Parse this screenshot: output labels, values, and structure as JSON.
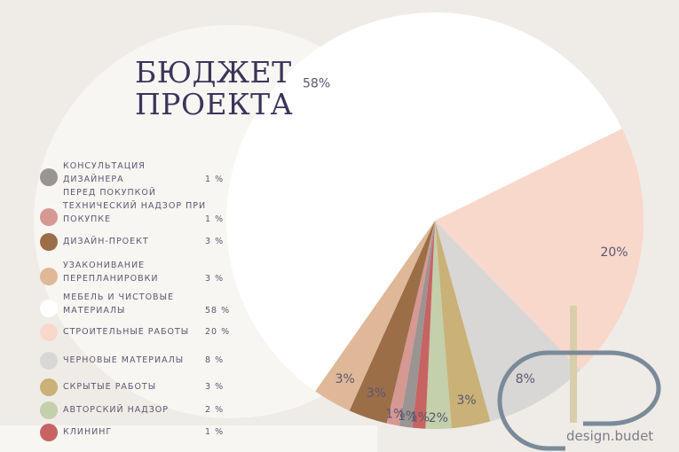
{
  "title_line1": "БЮДЖЕТ",
  "title_line2": "ПРОЕКТА",
  "brand": "design.budet",
  "chart_data": {
    "type": "pie",
    "title": "БЮДЖЕТ ПРОЕКТА",
    "slices": [
      {
        "label": "КОНСУЛЬТАЦИЯ ДИЗАЙНЕРА\nПЕРЕД ПОКУПКОЙ",
        "value": 1,
        "value_label": "1 %",
        "chart_label": "1%",
        "color": "#9a9492"
      },
      {
        "label": "ТЕХНИЧЕСКИЙ НАДЗОР ПРИ\nПОКУПКЕ",
        "value": 1,
        "value_label": "1 %",
        "chart_label": "1%",
        "color": "#d59893"
      },
      {
        "label": "ДИЗАЙН-ПРОЕКТ",
        "value": 3,
        "value_label": "3 %",
        "chart_label": "3%",
        "color": "#9b6e48"
      },
      {
        "label": "УЗАКОНИВАНИЕ\nПЕРЕПЛАНИРОВКИ",
        "value": 3,
        "value_label": "3 %",
        "chart_label": "3%",
        "color": "#dfb898"
      },
      {
        "label": "МЕБЕЛЬ И ЧИСТОВЫЕ\nМАТЕРИАЛЫ",
        "value": 58,
        "value_label": "58 %",
        "chart_label": "58%",
        "color": "#ffffff"
      },
      {
        "label": "СТРОИТЕЛЬНЫЕ РАБОТЫ",
        "value": 20,
        "value_label": "20 %",
        "chart_label": "20%",
        "color": "#f8d8cb"
      },
      {
        "label": "ЧЕРНОВЫЕ МАТЕРИАЛЫ",
        "value": 8,
        "value_label": "8 %",
        "chart_label": "8%",
        "color": "#d8d7d5"
      },
      {
        "label": "СКРЫТЫЕ РАБОТЫ",
        "value": 3,
        "value_label": "3 %",
        "chart_label": "3%",
        "color": "#c9b177"
      },
      {
        "label": "АВТОРСКИЙ НАДЗОР",
        "value": 2,
        "value_label": "2 %",
        "chart_label": "2%",
        "color": "#c4cfab"
      },
      {
        "label": "КЛИНИНГ",
        "value": 1,
        "value_label": "1 %",
        "chart_label": "1%",
        "color": "#c76363"
      }
    ],
    "pie_order": [
      4,
      5,
      6,
      7,
      8,
      9,
      0,
      1,
      2,
      3
    ],
    "legend_placement": "left"
  }
}
